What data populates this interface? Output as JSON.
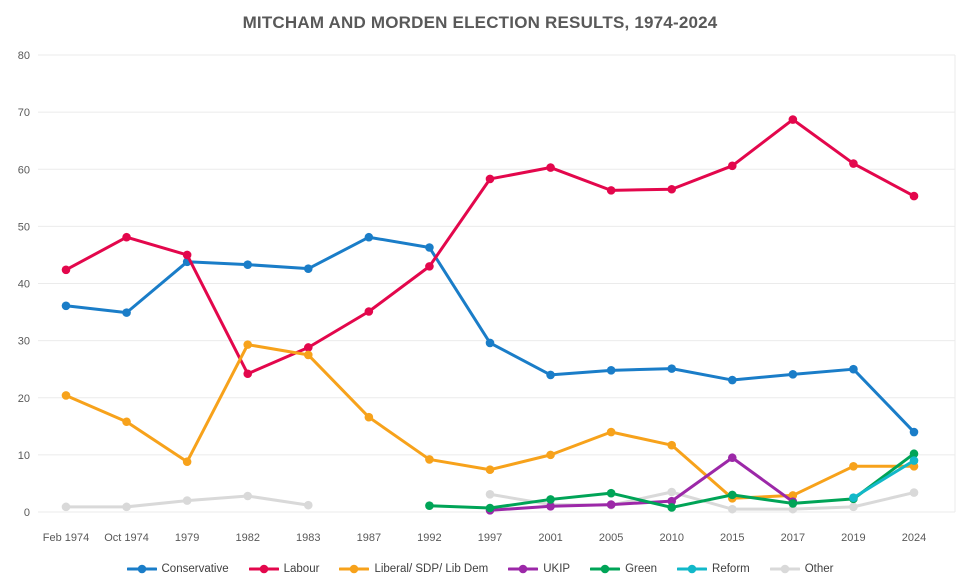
{
  "chart_data": {
    "type": "line",
    "title": "MITCHAM AND MORDEN ELECTION RESULTS, 1974-2024",
    "categories": [
      "Feb 1974",
      "Oct 1974",
      "1979",
      "1982",
      "1983",
      "1987",
      "1992",
      "1997",
      "2001",
      "2005",
      "2010",
      "2015",
      "2017",
      "2019",
      "2024"
    ],
    "series": [
      {
        "name": "Conservative",
        "color": "#1a7dc8",
        "values": [
          36.1,
          34.9,
          43.8,
          43.3,
          42.6,
          48.1,
          46.3,
          29.6,
          24.0,
          24.8,
          25.1,
          23.1,
          24.1,
          25.0,
          14.0
        ]
      },
      {
        "name": "Labour",
        "color": "#e3074c",
        "values": [
          42.4,
          48.1,
          45.0,
          24.2,
          28.8,
          35.1,
          43.0,
          58.3,
          60.3,
          56.3,
          56.5,
          60.6,
          68.7,
          61.0,
          55.3
        ]
      },
      {
        "name": "Liberal/ SDP/ Lib Dem",
        "color": "#f7a21b",
        "values": [
          20.4,
          15.8,
          8.8,
          29.3,
          27.5,
          16.6,
          9.2,
          7.4,
          10.0,
          14.0,
          11.7,
          2.4,
          2.9,
          8.0,
          8.0
        ]
      },
      {
        "name": "UKIP",
        "color": "#9c28a8",
        "values": [
          null,
          null,
          null,
          null,
          null,
          null,
          null,
          0.3,
          1.0,
          1.3,
          1.9,
          9.5,
          1.8,
          null,
          null
        ]
      },
      {
        "name": "Green",
        "color": "#00a457",
        "values": [
          null,
          null,
          null,
          null,
          null,
          null,
          1.1,
          0.7,
          2.2,
          3.3,
          0.8,
          3.0,
          1.5,
          2.3,
          10.2
        ]
      },
      {
        "name": "Reform",
        "color": "#12b8c9",
        "values": [
          null,
          null,
          null,
          null,
          null,
          null,
          null,
          null,
          null,
          null,
          null,
          null,
          null,
          2.5,
          9.0
        ]
      },
      {
        "name": "Other",
        "color": "#d9d9d9",
        "values": [
          0.9,
          0.9,
          2.0,
          2.8,
          1.2,
          null,
          null,
          3.1,
          1.3,
          1.2,
          3.5,
          0.5,
          0.5,
          0.9,
          3.4
        ]
      }
    ],
    "ylim": [
      0,
      80
    ],
    "yticks": [
      0,
      10,
      20,
      30,
      40,
      50,
      60,
      70,
      80
    ],
    "grid": "horizontal",
    "legend_position": "bottom"
  },
  "colors": {
    "title_text": "#595959",
    "tick_text": "#595959",
    "legend_text": "#404040",
    "gridline": "#ebebeb"
  }
}
